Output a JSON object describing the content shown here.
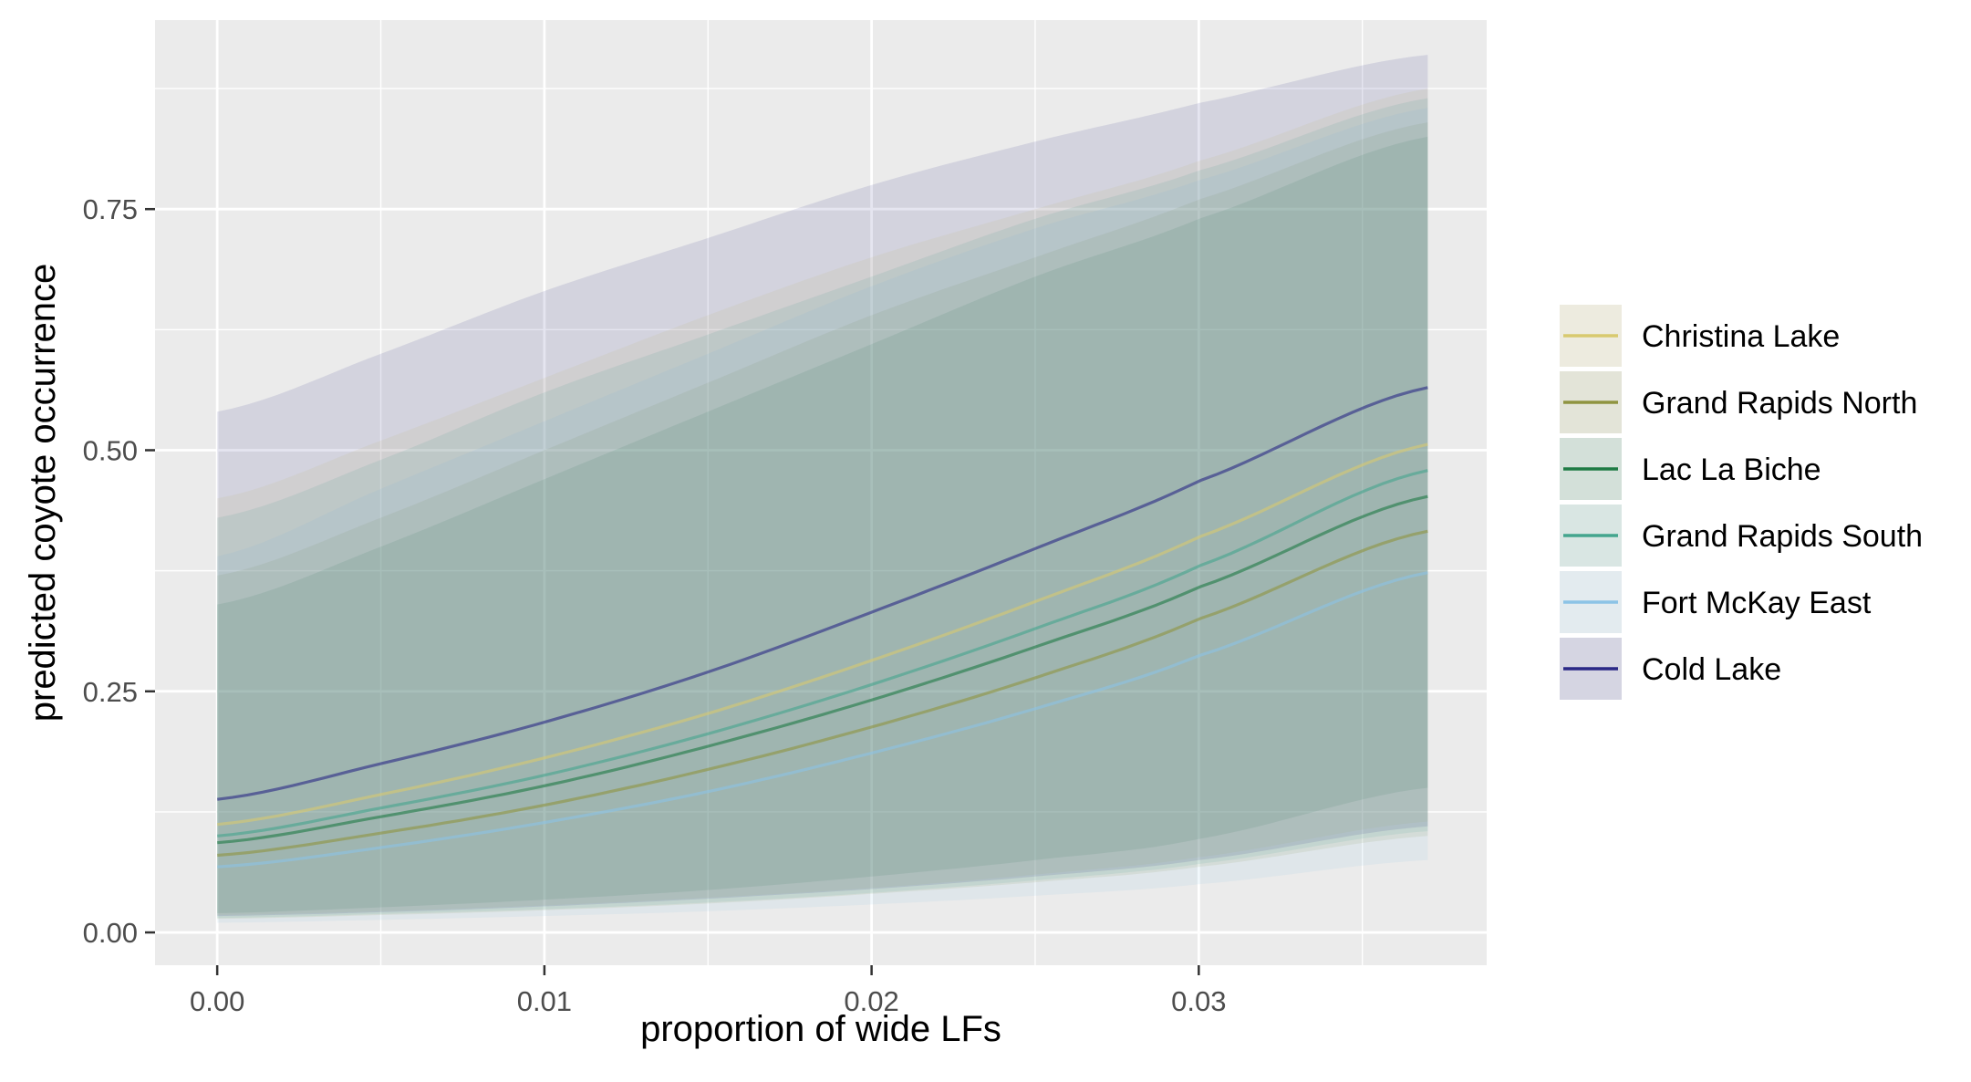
{
  "chart_data": {
    "type": "line",
    "title": "",
    "xlabel": "proportion of wide LFs",
    "ylabel": "predicted coyote occurrence",
    "xlim": [
      -0.0019,
      0.0388
    ],
    "ylim": [
      -0.034,
      0.946
    ],
    "x_ticks": [
      {
        "value": 0.0,
        "label": "0.00"
      },
      {
        "value": 0.01,
        "label": "0.01"
      },
      {
        "value": 0.02,
        "label": "0.02"
      },
      {
        "value": 0.03,
        "label": "0.03"
      }
    ],
    "y_ticks": [
      {
        "value": 0.0,
        "label": "0.00"
      },
      {
        "value": 0.25,
        "label": "0.25"
      },
      {
        "value": 0.5,
        "label": "0.50"
      },
      {
        "value": 0.75,
        "label": "0.75"
      }
    ],
    "x": [
      0.0,
      0.005,
      0.01,
      0.015,
      0.02,
      0.025,
      0.03,
      0.037
    ],
    "grid": true,
    "legend_position": "right",
    "series": [
      {
        "name": "Christina Lake",
        "color": "#d8c96f",
        "values": [
          0.112,
          0.143,
          0.181,
          0.227,
          0.282,
          0.343,
          0.41,
          0.506
        ],
        "lower": [
          0.018,
          0.022,
          0.028,
          0.036,
          0.046,
          0.06,
          0.078,
          0.115
        ],
        "upper": [
          0.45,
          0.51,
          0.575,
          0.64,
          0.7,
          0.75,
          0.8,
          0.875
        ]
      },
      {
        "name": "Grand Rapids North",
        "color": "#8f9440",
        "values": [
          0.08,
          0.103,
          0.132,
          0.169,
          0.213,
          0.264,
          0.325,
          0.416
        ],
        "lower": [
          0.014,
          0.018,
          0.023,
          0.03,
          0.04,
          0.052,
          0.068,
          0.1
        ],
        "upper": [
          0.37,
          0.43,
          0.5,
          0.57,
          0.64,
          0.7,
          0.76,
          0.84
        ]
      },
      {
        "name": "Lac La Biche",
        "color": "#1e7a44",
        "values": [
          0.093,
          0.12,
          0.152,
          0.193,
          0.241,
          0.296,
          0.358,
          0.452
        ],
        "lower": [
          0.02,
          0.026,
          0.034,
          0.044,
          0.058,
          0.075,
          0.097,
          0.15
        ],
        "upper": [
          0.34,
          0.4,
          0.47,
          0.54,
          0.61,
          0.68,
          0.74,
          0.825
        ]
      },
      {
        "name": "Grand Rapids South",
        "color": "#44a58e",
        "values": [
          0.1,
          0.129,
          0.163,
          0.206,
          0.257,
          0.315,
          0.38,
          0.479
        ],
        "lower": [
          0.015,
          0.019,
          0.024,
          0.031,
          0.041,
          0.054,
          0.071,
          0.105
        ],
        "upper": [
          0.43,
          0.49,
          0.56,
          0.62,
          0.68,
          0.74,
          0.79,
          0.865
        ]
      },
      {
        "name": "Fort McKay East",
        "color": "#8cc3e6",
        "values": [
          0.068,
          0.088,
          0.114,
          0.146,
          0.186,
          0.232,
          0.287,
          0.373
        ],
        "lower": [
          0.01,
          0.013,
          0.017,
          0.022,
          0.029,
          0.038,
          0.05,
          0.075
        ],
        "upper": [
          0.39,
          0.46,
          0.53,
          0.6,
          0.67,
          0.73,
          0.78,
          0.855
        ]
      },
      {
        "name": "Cold Lake",
        "color": "#2a2886",
        "values": [
          0.138,
          0.175,
          0.218,
          0.27,
          0.332,
          0.398,
          0.468,
          0.565
        ],
        "lower": [
          0.017,
          0.021,
          0.027,
          0.035,
          0.045,
          0.058,
          0.075,
          0.11
        ],
        "upper": [
          0.54,
          0.6,
          0.665,
          0.72,
          0.775,
          0.82,
          0.86,
          0.91
        ]
      }
    ]
  }
}
